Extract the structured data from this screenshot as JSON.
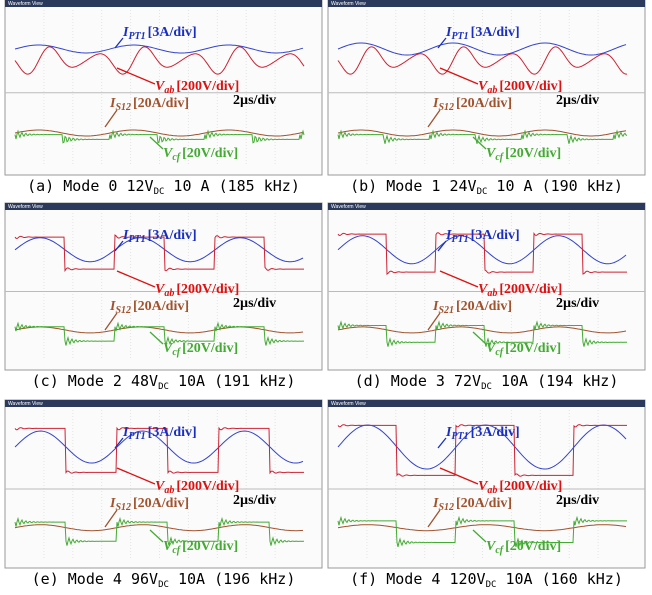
{
  "panels": [
    {
      "header": "Waveform View",
      "ipt": {
        "symbol": "I",
        "sub": "PT1",
        "scale": "[3A/div]"
      },
      "vab": {
        "symbol": "V",
        "sub": "ab",
        "scale": "[200V/div]"
      },
      "time": "2µs/div",
      "is": {
        "symbol": "I",
        "sub": "S12",
        "scale": "[20A/div]"
      },
      "vcf": {
        "symbol": "V",
        "sub": "cf",
        "scale": "[20V/div]"
      },
      "caption": {
        "prefix": "(a) Mode 0 12V",
        "sub": "DC",
        "suffix": " 10 A (185 kHz)"
      }
    },
    {
      "header": "Waveform View",
      "ipt": {
        "symbol": "I",
        "sub": "PT1",
        "scale": "[3A/div]"
      },
      "vab": {
        "symbol": "V",
        "sub": "ab",
        "scale": "[200V/div]"
      },
      "time": "2µs/div",
      "is": {
        "symbol": "I",
        "sub": "S12",
        "scale": "[20A/div]"
      },
      "vcf": {
        "symbol": "V",
        "sub": "cf",
        "scale": "[20V/div]"
      },
      "caption": {
        "prefix": "(b) Mode 1 24V",
        "sub": "DC",
        "suffix": " 10 A (190 kHz)"
      }
    },
    {
      "header": "Waveform View",
      "ipt": {
        "symbol": "I",
        "sub": "PT1",
        "scale": "[3A/div]"
      },
      "vab": {
        "symbol": "V",
        "sub": "ab",
        "scale": "[200V/div]"
      },
      "time": "2µs/div",
      "is": {
        "symbol": "I",
        "sub": "S12",
        "scale": "[20A/div]"
      },
      "vcf": {
        "symbol": "V",
        "sub": "cf",
        "scale": "[20V/div]"
      },
      "caption": {
        "prefix": "(c) Mode 2 48V",
        "sub": "DC",
        "suffix": " 10A (191 kHz)"
      }
    },
    {
      "header": "Waveform View",
      "ipt": {
        "symbol": "I",
        "sub": "PT1",
        "scale": "[3A/div]"
      },
      "vab": {
        "symbol": "V",
        "sub": "ab",
        "scale": "[200V/div]"
      },
      "time": "2µs/div",
      "is": {
        "symbol": "I",
        "sub": "S21",
        "scale": "[20A/div]"
      },
      "vcf": {
        "symbol": "V",
        "sub": "cf",
        "scale": "[20V/div]"
      },
      "caption": {
        "prefix": "(d) Mode 3 72V",
        "sub": "DC",
        "suffix": " 10A (194 kHz)"
      }
    },
    {
      "header": "Waveform View",
      "ipt": {
        "symbol": "I",
        "sub": "PT1",
        "scale": "[3A/div]"
      },
      "vab": {
        "symbol": "V",
        "sub": "ab",
        "scale": "[200V/div]"
      },
      "time": "2µs/div",
      "is": {
        "symbol": "I",
        "sub": "S12",
        "scale": "[20A/div]"
      },
      "vcf": {
        "symbol": "V",
        "sub": "cf",
        "scale": "[20V/div]"
      },
      "caption": {
        "prefix": "(e) Mode 4 96V",
        "sub": "DC",
        "suffix": " 10A (196 kHz)"
      }
    },
    {
      "header": "Waveform View",
      "ipt": {
        "symbol": "I",
        "sub": "PT1",
        "scale": "[3A/div]"
      },
      "vab": {
        "symbol": "V",
        "sub": "ab",
        "scale": "[200V/div]"
      },
      "time": "2µs/div",
      "is": {
        "symbol": "I",
        "sub": "S12",
        "scale": "[20A/div]"
      },
      "vcf": {
        "symbol": "V",
        "sub": "cf",
        "scale": "[20V/div]"
      },
      "caption": {
        "prefix": "(f) Mode 4 120V",
        "sub": "DC",
        "suffix": " 10A (160 kHz)"
      }
    }
  ]
}
